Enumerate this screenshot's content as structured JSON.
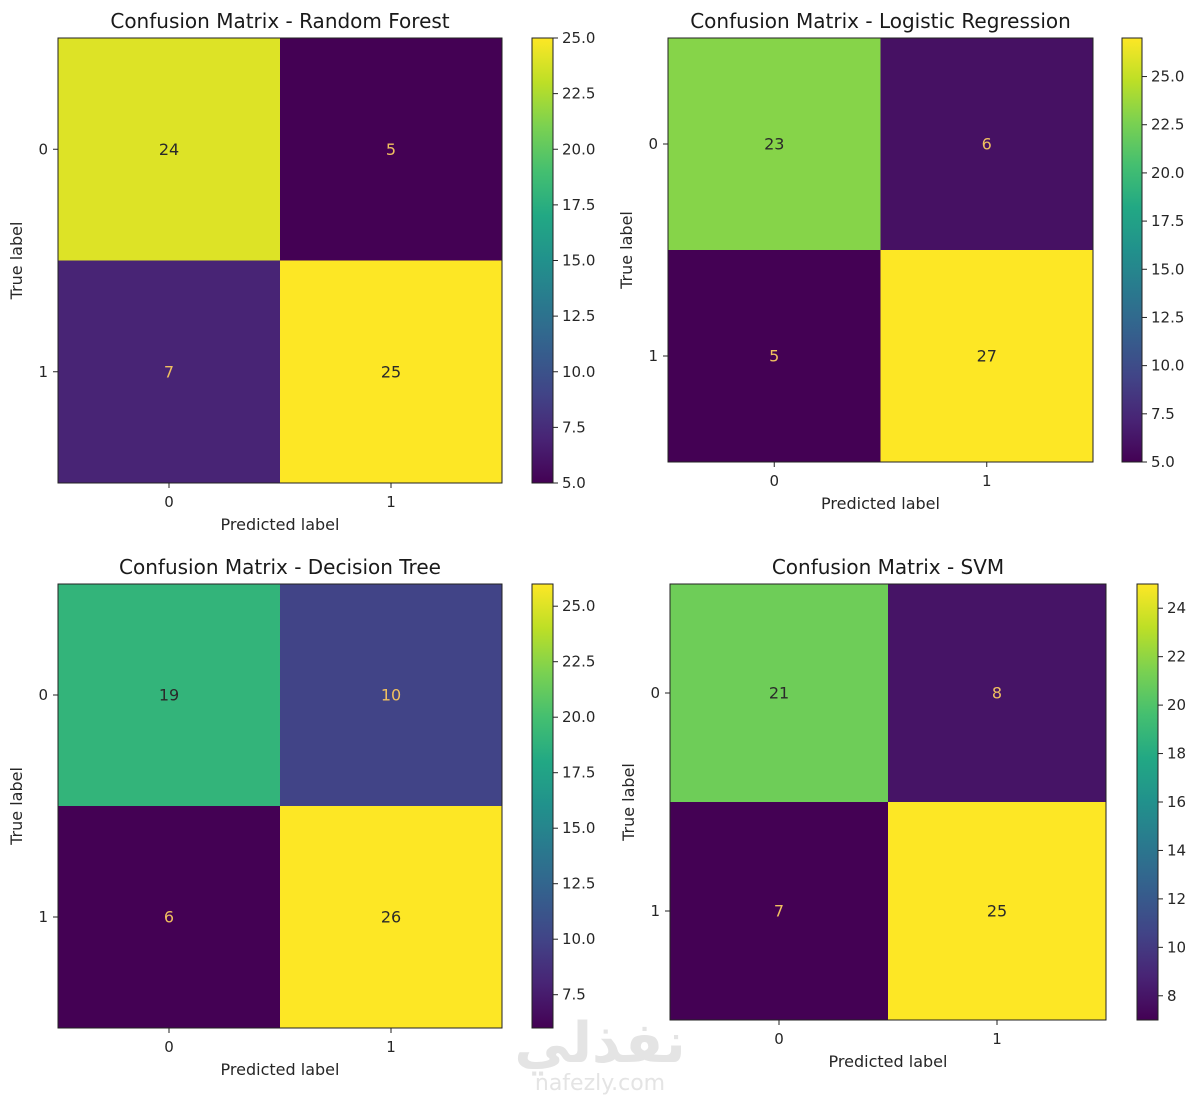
{
  "chart_data": [
    {
      "type": "heatmap",
      "title": "Confusion Matrix - Random Forest",
      "xlabel": "Predicted label",
      "ylabel": "True label",
      "x_ticks": [
        "0",
        "1"
      ],
      "y_ticks": [
        "0",
        "1"
      ],
      "matrix": [
        [
          24,
          5
        ],
        [
          7,
          25
        ]
      ],
      "colormap": "viridis",
      "colorbar": {
        "min": 5,
        "max": 25,
        "ticks": [
          "5.0",
          "7.5",
          "10.0",
          "12.5",
          "15.0",
          "17.5",
          "20.0",
          "22.5",
          "25.0"
        ],
        "tick_values": [
          5,
          7.5,
          10,
          12.5,
          15,
          17.5,
          20,
          22.5,
          25
        ]
      }
    },
    {
      "type": "heatmap",
      "title": "Confusion Matrix - Logistic Regression",
      "xlabel": "Predicted label",
      "ylabel": "True label",
      "x_ticks": [
        "0",
        "1"
      ],
      "y_ticks": [
        "0",
        "1"
      ],
      "matrix": [
        [
          23,
          6
        ],
        [
          5,
          27
        ]
      ],
      "colormap": "viridis",
      "colorbar": {
        "min": 5,
        "max": 27,
        "ticks": [
          "5.0",
          "7.5",
          "10.0",
          "12.5",
          "15.0",
          "17.5",
          "20.0",
          "22.5",
          "25.0"
        ],
        "tick_values": [
          5,
          7.5,
          10,
          12.5,
          15,
          17.5,
          20,
          22.5,
          25
        ]
      }
    },
    {
      "type": "heatmap",
      "title": "Confusion Matrix - Decision Tree",
      "xlabel": "Predicted label",
      "ylabel": "True label",
      "x_ticks": [
        "0",
        "1"
      ],
      "y_ticks": [
        "0",
        "1"
      ],
      "matrix": [
        [
          19,
          10
        ],
        [
          6,
          26
        ]
      ],
      "colormap": "viridis",
      "colorbar": {
        "min": 6,
        "max": 26,
        "ticks": [
          "7.5",
          "10.0",
          "12.5",
          "15.0",
          "17.5",
          "20.0",
          "22.5",
          "25.0"
        ],
        "tick_values": [
          7.5,
          10,
          12.5,
          15,
          17.5,
          20,
          22.5,
          25
        ]
      }
    },
    {
      "type": "heatmap",
      "title": "Confusion Matrix - SVM",
      "xlabel": "Predicted label",
      "ylabel": "True label",
      "x_ticks": [
        "0",
        "1"
      ],
      "y_ticks": [
        "0",
        "1"
      ],
      "matrix": [
        [
          21,
          8
        ],
        [
          7,
          25
        ]
      ],
      "colormap": "viridis",
      "colorbar": {
        "min": 7,
        "max": 25,
        "ticks": [
          "8",
          "10",
          "12",
          "14",
          "16",
          "18",
          "20",
          "22",
          "24"
        ],
        "tick_values": [
          8,
          10,
          12,
          14,
          16,
          18,
          20,
          22,
          24
        ]
      }
    }
  ],
  "watermark": {
    "arabic": "نفذلي",
    "latin": "nafezly.com"
  },
  "colors": {
    "text_on_dark": "#f0c060",
    "text_on_light": "#2a2a2a",
    "frame": "#222222"
  }
}
